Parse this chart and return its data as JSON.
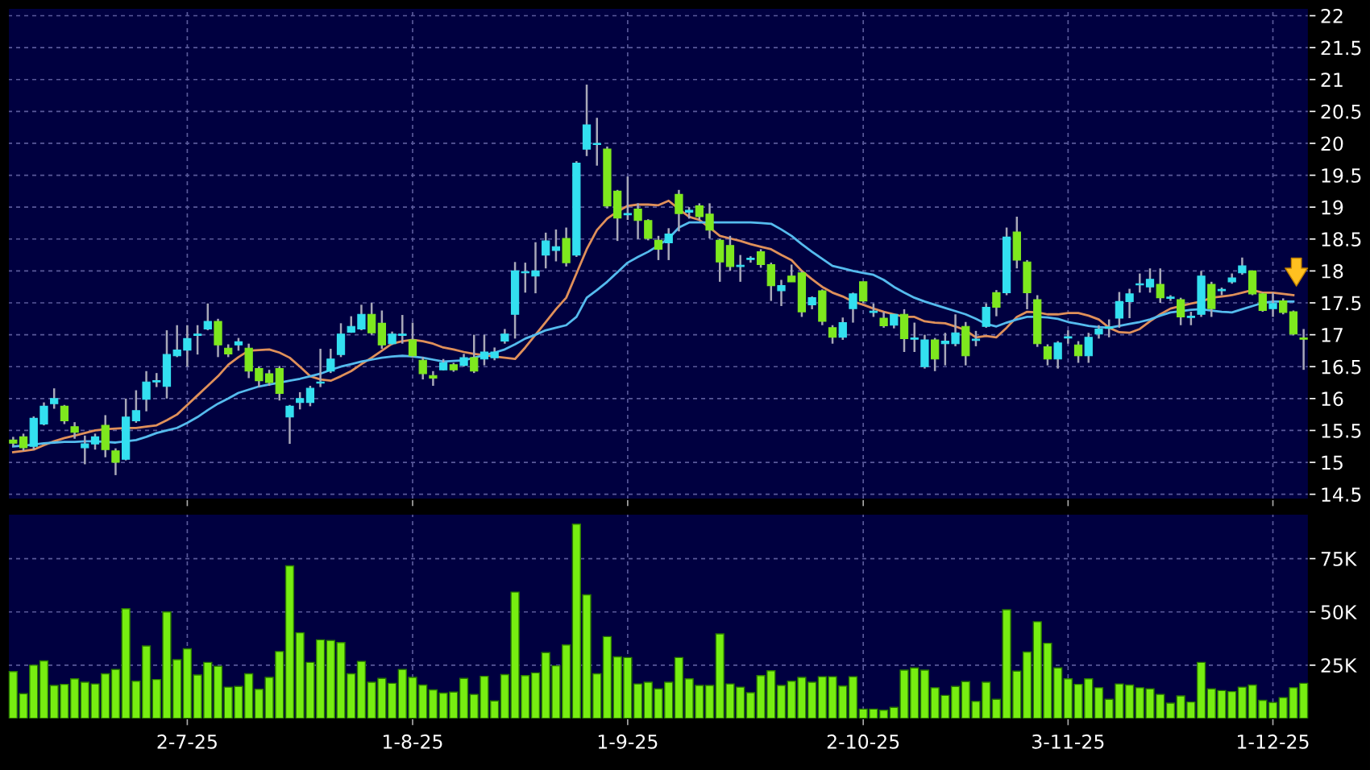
{
  "chart_data": [
    {
      "type": "candlestick",
      "tick_labels": "y",
      "grid": true,
      "legend": false,
      "categories": [
        null,
        null,
        null,
        null,
        null,
        null,
        null,
        null,
        null,
        null,
        null,
        null,
        null,
        null,
        null,
        null,
        null,
        null,
        null,
        null,
        null,
        null,
        null,
        null,
        null,
        null,
        null,
        null,
        null,
        null,
        null,
        null,
        null,
        null,
        null,
        null,
        null,
        null,
        null,
        null,
        null,
        null,
        null,
        null,
        null,
        null,
        null,
        null,
        null,
        null,
        null,
        null,
        null,
        null,
        null,
        null,
        null,
        null,
        null,
        null,
        null,
        null,
        null,
        null,
        null,
        null,
        null,
        null,
        null,
        null,
        null,
        null,
        null,
        null,
        null,
        null,
        null,
        null,
        null,
        null,
        null,
        null,
        null,
        null,
        null,
        null,
        null,
        null,
        null,
        null,
        null,
        null,
        null,
        null,
        null,
        null,
        null,
        null,
        null,
        null,
        null,
        null,
        null,
        null,
        null,
        null,
        null,
        null,
        null,
        null,
        null,
        null,
        null,
        null,
        null,
        null,
        null,
        null,
        null,
        null,
        null,
        null,
        null,
        null,
        null,
        null,
        null
      ],
      "ylim": [
        14.42,
        22.12
      ],
      "yticks": [
        14.5,
        15,
        15.5,
        16,
        16.5,
        17,
        17.5,
        18,
        18.5,
        19,
        19.5,
        20,
        20.5,
        21,
        21.5,
        22
      ],
      "ohlc": [
        [
          15.35,
          15.4,
          15.25,
          15.3
        ],
        [
          15.4,
          15.45,
          15.18,
          15.23
        ],
        [
          15.25,
          15.72,
          15.2,
          15.69
        ],
        [
          15.6,
          15.94,
          15.58,
          15.88
        ],
        [
          15.92,
          16.16,
          15.84,
          16.0
        ],
        [
          15.88,
          15.9,
          15.6,
          15.65
        ],
        [
          15.56,
          15.63,
          15.37,
          15.47
        ],
        [
          15.23,
          15.42,
          14.97,
          15.29
        ],
        [
          15.29,
          15.45,
          15.2,
          15.4
        ],
        [
          15.58,
          15.74,
          15.08,
          15.2
        ],
        [
          15.18,
          15.22,
          14.8,
          15.0
        ],
        [
          15.05,
          16.0,
          15.03,
          15.71
        ],
        [
          15.65,
          16.13,
          15.62,
          15.81
        ],
        [
          15.99,
          16.43,
          15.8,
          16.26
        ],
        [
          16.26,
          16.4,
          16.18,
          16.28
        ],
        [
          16.19,
          17.07,
          16.0,
          16.69
        ],
        [
          16.67,
          17.15,
          16.65,
          16.76
        ],
        [
          16.76,
          17.15,
          16.5,
          16.94
        ],
        [
          16.99,
          17.15,
          16.69,
          17.01
        ],
        [
          17.09,
          17.49,
          17.07,
          17.21
        ],
        [
          17.21,
          17.25,
          16.65,
          16.84
        ],
        [
          16.79,
          16.85,
          16.65,
          16.7
        ],
        [
          16.84,
          16.95,
          16.75,
          16.89
        ],
        [
          16.79,
          16.86,
          16.32,
          16.43
        ],
        [
          16.47,
          16.5,
          16.18,
          16.28
        ],
        [
          16.39,
          16.45,
          16.2,
          16.25
        ],
        [
          16.47,
          16.51,
          15.97,
          16.08
        ],
        [
          15.71,
          15.9,
          15.29,
          15.88
        ],
        [
          15.94,
          16.1,
          15.83,
          16.0
        ],
        [
          15.94,
          16.2,
          15.88,
          16.16
        ],
        [
          16.24,
          16.78,
          16.18,
          16.26
        ],
        [
          16.43,
          16.78,
          16.4,
          16.62
        ],
        [
          16.69,
          17.18,
          16.65,
          17.01
        ],
        [
          17.04,
          17.29,
          17.03,
          17.13
        ],
        [
          17.09,
          17.47,
          17.07,
          17.32
        ],
        [
          17.32,
          17.5,
          17.0,
          17.03
        ],
        [
          17.18,
          17.38,
          16.78,
          16.84
        ],
        [
          16.86,
          17.05,
          16.84,
          17.01
        ],
        [
          16.99,
          17.31,
          16.86,
          17.01
        ],
        [
          16.92,
          17.19,
          16.64,
          16.67
        ],
        [
          16.6,
          16.65,
          16.3,
          16.39
        ],
        [
          16.36,
          16.43,
          16.2,
          16.32
        ],
        [
          16.45,
          16.62,
          16.44,
          16.56
        ],
        [
          16.53,
          16.56,
          16.42,
          16.45
        ],
        [
          16.52,
          16.7,
          16.5,
          16.64
        ],
        [
          16.64,
          17.0,
          16.4,
          16.43
        ],
        [
          16.62,
          17.0,
          16.52,
          16.73
        ],
        [
          16.64,
          16.8,
          16.6,
          16.73
        ],
        [
          16.9,
          17.09,
          16.86,
          17.01
        ],
        [
          17.32,
          18.14,
          16.94,
          18.0
        ],
        [
          17.97,
          18.13,
          17.66,
          17.99
        ],
        [
          17.92,
          18.45,
          17.65,
          18.0
        ],
        [
          18.25,
          18.6,
          18.04,
          18.47
        ],
        [
          18.32,
          18.65,
          18.15,
          18.38
        ],
        [
          18.51,
          18.68,
          18.07,
          18.13
        ],
        [
          18.25,
          19.72,
          18.22,
          19.69
        ],
        [
          19.91,
          20.92,
          19.8,
          20.29
        ],
        [
          19.98,
          20.4,
          19.65,
          20.0
        ],
        [
          19.91,
          19.95,
          18.98,
          19.02
        ],
        [
          19.25,
          19.27,
          18.47,
          18.83
        ],
        [
          18.88,
          19.48,
          18.8,
          18.9
        ],
        [
          18.97,
          19.06,
          18.5,
          18.79
        ],
        [
          18.79,
          18.81,
          18.48,
          18.51
        ],
        [
          18.48,
          18.55,
          18.17,
          18.34
        ],
        [
          18.44,
          18.67,
          18.17,
          18.58
        ],
        [
          19.2,
          19.27,
          18.62,
          18.9
        ],
        [
          18.92,
          19.0,
          18.82,
          18.95
        ],
        [
          19.02,
          19.06,
          18.8,
          18.85
        ],
        [
          18.89,
          19.06,
          18.51,
          18.64
        ],
        [
          18.48,
          18.5,
          17.83,
          18.14
        ],
        [
          18.4,
          18.55,
          18.0,
          18.07
        ],
        [
          18.07,
          18.25,
          17.83,
          18.09
        ],
        [
          18.18,
          18.23,
          18.13,
          18.2
        ],
        [
          18.3,
          18.34,
          18.05,
          18.1
        ],
        [
          18.1,
          18.13,
          17.53,
          17.77
        ],
        [
          17.69,
          17.86,
          17.45,
          17.77
        ],
        [
          17.92,
          18.1,
          17.83,
          17.83
        ],
        [
          17.97,
          18.0,
          17.28,
          17.36
        ],
        [
          17.47,
          17.6,
          17.4,
          17.58
        ],
        [
          17.69,
          17.71,
          17.15,
          17.21
        ],
        [
          17.11,
          17.15,
          16.86,
          16.96
        ],
        [
          16.96,
          17.27,
          16.92,
          17.19
        ],
        [
          17.41,
          17.66,
          17.19,
          17.64
        ],
        [
          17.83,
          17.83,
          17.5,
          17.53
        ],
        [
          17.35,
          17.49,
          17.28,
          17.37
        ],
        [
          17.26,
          17.36,
          17.11,
          17.14
        ],
        [
          17.15,
          17.32,
          17.1,
          17.32
        ],
        [
          17.32,
          17.4,
          16.73,
          16.94
        ],
        [
          16.93,
          17.19,
          16.73,
          16.95
        ],
        [
          16.5,
          17.0,
          16.47,
          16.92
        ],
        [
          16.92,
          16.95,
          16.43,
          16.62
        ],
        [
          16.86,
          17.03,
          16.52,
          16.9
        ],
        [
          16.86,
          17.32,
          16.82,
          17.03
        ],
        [
          17.13,
          17.2,
          16.52,
          16.67
        ],
        [
          16.91,
          17.06,
          16.82,
          16.93
        ],
        [
          17.13,
          17.49,
          17.11,
          17.43
        ],
        [
          17.66,
          17.7,
          17.29,
          17.43
        ],
        [
          17.66,
          18.68,
          17.62,
          18.53
        ],
        [
          18.61,
          18.85,
          18.04,
          18.17
        ],
        [
          18.14,
          18.17,
          17.4,
          17.66
        ],
        [
          17.55,
          17.62,
          16.81,
          16.86
        ],
        [
          16.81,
          16.85,
          16.52,
          16.62
        ],
        [
          16.62,
          16.9,
          16.47,
          16.87
        ],
        [
          16.95,
          17.07,
          16.86,
          16.97
        ],
        [
          16.84,
          16.9,
          16.56,
          16.67
        ],
        [
          16.67,
          17.03,
          16.56,
          16.96
        ],
        [
          17.01,
          17.15,
          16.94,
          17.09
        ],
        [
          17.1,
          17.24,
          16.96,
          17.12
        ],
        [
          17.26,
          17.67,
          17.11,
          17.52
        ],
        [
          17.52,
          17.72,
          17.26,
          17.64
        ],
        [
          17.78,
          17.96,
          17.66,
          17.8
        ],
        [
          17.75,
          18.04,
          17.66,
          17.87
        ],
        [
          17.79,
          18.04,
          17.5,
          17.58
        ],
        [
          17.57,
          17.62,
          17.53,
          17.59
        ],
        [
          17.55,
          17.58,
          17.15,
          17.28
        ],
        [
          17.27,
          17.36,
          17.15,
          17.29
        ],
        [
          17.32,
          18.0,
          17.28,
          17.92
        ],
        [
          17.79,
          17.83,
          17.28,
          17.41
        ],
        [
          17.69,
          17.74,
          17.62,
          17.71
        ],
        [
          17.83,
          17.96,
          17.8,
          17.89
        ],
        [
          17.97,
          18.21,
          17.94,
          18.08
        ],
        [
          18.0,
          18.0,
          17.62,
          17.64
        ],
        [
          17.64,
          17.66,
          17.36,
          17.38
        ],
        [
          17.41,
          17.66,
          17.28,
          17.49
        ],
        [
          17.53,
          17.57,
          17.32,
          17.35
        ],
        [
          17.36,
          17.38,
          16.99,
          17.01
        ],
        [
          16.95,
          17.09,
          16.45,
          16.93
        ]
      ],
      "colors": [
        "#7ee81e",
        "#7ee81e",
        "#33e0f0",
        "#33e0f0",
        "#33e0f0",
        "#7ee81e",
        "#7ee81e",
        "#33e0f0",
        "#33e0f0",
        "#7ee81e",
        "#7ee81e",
        "#33e0f0",
        "#33e0f0",
        "#33e0f0",
        "#33e0f0",
        "#33e0f0",
        "#33e0f0",
        "#33e0f0",
        "#33e0f0",
        "#33e0f0",
        "#7ee81e",
        "#7ee81e",
        "#33e0f0",
        "#7ee81e",
        "#7ee81e",
        "#7ee81e",
        "#7ee81e",
        "#33e0f0",
        "#33e0f0",
        "#33e0f0",
        "#33e0f0",
        "#33e0f0",
        "#33e0f0",
        "#33e0f0",
        "#33e0f0",
        "#7ee81e",
        "#7ee81e",
        "#33e0f0",
        "#33e0f0",
        "#7ee81e",
        "#7ee81e",
        "#7ee81e",
        "#33e0f0",
        "#7ee81e",
        "#33e0f0",
        "#7ee81e",
        "#33e0f0",
        "#33e0f0",
        "#33e0f0",
        "#33e0f0",
        "#33e0f0",
        "#33e0f0",
        "#33e0f0",
        "#33e0f0",
        "#7ee81e",
        "#33e0f0",
        "#33e0f0",
        "#33e0f0",
        "#7ee81e",
        "#7ee81e",
        "#33e0f0",
        "#7ee81e",
        "#7ee81e",
        "#7ee81e",
        "#33e0f0",
        "#7ee81e",
        "#33e0f0",
        "#7ee81e",
        "#7ee81e",
        "#7ee81e",
        "#7ee81e",
        "#33e0f0",
        "#33e0f0",
        "#7ee81e",
        "#7ee81e",
        "#33e0f0",
        "#7ee81e",
        "#7ee81e",
        "#33e0f0",
        "#7ee81e",
        "#7ee81e",
        "#33e0f0",
        "#33e0f0",
        "#7ee81e",
        "#33e0f0",
        "#7ee81e",
        "#33e0f0",
        "#7ee81e",
        "#33e0f0",
        "#33e0f0",
        "#7ee81e",
        "#33e0f0",
        "#33e0f0",
        "#7ee81e",
        "#33e0f0",
        "#33e0f0",
        "#7ee81e",
        "#33e0f0",
        "#7ee81e",
        "#7ee81e",
        "#7ee81e",
        "#7ee81e",
        "#33e0f0",
        "#33e0f0",
        "#7ee81e",
        "#33e0f0",
        "#33e0f0",
        "#33e0f0",
        "#33e0f0",
        "#33e0f0",
        "#33e0f0",
        "#33e0f0",
        "#7ee81e",
        "#33e0f0",
        "#7ee81e",
        "#33e0f0",
        "#33e0f0",
        "#7ee81e",
        "#33e0f0",
        "#33e0f0",
        "#33e0f0",
        "#7ee81e",
        "#7ee81e",
        "#33e0f0",
        "#7ee81e",
        "#7ee81e",
        "#7ee81e"
      ],
      "series": [
        {
          "type": "line",
          "color": "#e0905a",
          "values": [
            15.16,
            15.18,
            15.2,
            15.27,
            15.33,
            15.38,
            15.42,
            15.46,
            15.5,
            15.52,
            15.53,
            15.54,
            15.54,
            15.56,
            15.58,
            15.66,
            15.75,
            15.9,
            16.05,
            16.2,
            16.35,
            16.53,
            16.65,
            16.75,
            16.76,
            16.77,
            16.72,
            16.64,
            16.5,
            16.35,
            16.3,
            16.28,
            16.35,
            16.43,
            16.54,
            16.64,
            16.75,
            16.86,
            16.9,
            16.92,
            16.9,
            16.86,
            16.8,
            16.77,
            16.73,
            16.7,
            16.68,
            16.66,
            16.64,
            16.62,
            16.8,
            17.0,
            17.2,
            17.4,
            17.58,
            17.96,
            18.34,
            18.64,
            18.82,
            18.93,
            19.02,
            19.04,
            19.04,
            19.03,
            19.1,
            18.97,
            18.85,
            18.8,
            18.68,
            18.55,
            18.51,
            18.47,
            18.42,
            18.38,
            18.34,
            18.25,
            18.17,
            18.0,
            17.87,
            17.75,
            17.66,
            17.6,
            17.52,
            17.47,
            17.41,
            17.36,
            17.32,
            17.28,
            17.28,
            17.21,
            17.19,
            17.18,
            17.13,
            17.07,
            16.96,
            16.98,
            16.96,
            17.11,
            17.28,
            17.36,
            17.35,
            17.32,
            17.32,
            17.34,
            17.34,
            17.3,
            17.24,
            17.11,
            17.04,
            17.03,
            17.09,
            17.21,
            17.32,
            17.41,
            17.45,
            17.49,
            17.52,
            17.58,
            17.6,
            17.62,
            17.66,
            17.7,
            17.66,
            17.66,
            17.64,
            17.62,
            null
          ]
        },
        {
          "type": "line",
          "color": "#55bbee",
          "values": [
            15.25,
            15.26,
            15.28,
            15.3,
            15.31,
            15.32,
            15.32,
            15.33,
            15.33,
            15.32,
            15.31,
            15.33,
            15.35,
            15.4,
            15.46,
            15.5,
            15.54,
            15.62,
            15.71,
            15.82,
            15.92,
            16.0,
            16.09,
            16.14,
            16.19,
            16.22,
            16.25,
            16.28,
            16.31,
            16.35,
            16.39,
            16.45,
            16.5,
            16.54,
            16.58,
            16.61,
            16.64,
            16.66,
            16.67,
            16.66,
            16.64,
            16.61,
            16.58,
            16.59,
            16.6,
            16.64,
            16.68,
            16.72,
            16.77,
            16.85,
            16.94,
            17.0,
            17.07,
            17.11,
            17.15,
            17.28,
            17.58,
            17.7,
            17.83,
            17.98,
            18.13,
            18.22,
            18.3,
            18.4,
            18.51,
            18.68,
            18.76,
            18.76,
            18.76,
            18.76,
            18.76,
            18.76,
            18.76,
            18.75,
            18.74,
            18.65,
            18.55,
            18.42,
            18.3,
            18.19,
            18.08,
            18.04,
            18.0,
            17.97,
            17.94,
            17.86,
            17.75,
            17.66,
            17.58,
            17.52,
            17.47,
            17.42,
            17.37,
            17.32,
            17.25,
            17.17,
            17.13,
            17.19,
            17.24,
            17.28,
            17.28,
            17.27,
            17.25,
            17.2,
            17.17,
            17.14,
            17.12,
            17.11,
            17.14,
            17.17,
            17.2,
            17.24,
            17.3,
            17.35,
            17.37,
            17.39,
            17.4,
            17.38,
            17.36,
            17.35,
            17.4,
            17.45,
            17.5,
            17.52,
            17.52,
            17.52,
            null
          ]
        }
      ]
    },
    {
      "type": "bar",
      "grid": true,
      "legend": false,
      "color": "#77ee11",
      "categories": [
        null,
        null,
        null,
        null,
        null,
        null,
        null,
        null,
        null,
        null,
        null,
        null,
        null,
        null,
        null,
        null,
        null,
        "2-7-25",
        null,
        null,
        null,
        null,
        null,
        null,
        null,
        null,
        null,
        null,
        null,
        null,
        null,
        null,
        null,
        null,
        null,
        null,
        null,
        null,
        null,
        "1-8-25",
        null,
        null,
        null,
        null,
        null,
        null,
        null,
        null,
        null,
        null,
        null,
        null,
        null,
        null,
        null,
        null,
        null,
        null,
        null,
        null,
        "1-9-25",
        null,
        null,
        null,
        null,
        null,
        null,
        null,
        null,
        null,
        null,
        null,
        null,
        null,
        null,
        null,
        null,
        null,
        null,
        null,
        null,
        null,
        null,
        "2-10-25",
        null,
        null,
        null,
        null,
        null,
        null,
        null,
        null,
        null,
        null,
        null,
        null,
        null,
        null,
        null,
        null,
        null,
        null,
        null,
        "3-11-25",
        null,
        null,
        null,
        null,
        null,
        null,
        null,
        null,
        null,
        null,
        null,
        null,
        null,
        null,
        null,
        null,
        null,
        null,
        null,
        "1-12-25",
        null,
        null,
        null
      ],
      "ylim": [
        0,
        96
      ],
      "yticks": [
        {
          "value": 25,
          "label": "25K"
        },
        {
          "value": 50,
          "label": "50K"
        },
        {
          "value": 75,
          "label": "75K"
        }
      ],
      "values": [
        22,
        11.6,
        25,
        27,
        15.5,
        16,
        18.6,
        17,
        16.2,
        21,
        23,
        51.5,
        17.5,
        34,
        18.3,
        50,
        27.6,
        32.7,
        20.4,
        26.3,
        24.5,
        14.7,
        15,
        21,
        13.7,
        19.3,
        31.4,
        71.6,
        40.2,
        26.3,
        36.9,
        36.6,
        35.6,
        21,
        26.8,
        17,
        18.8,
        16.5,
        23,
        19.3,
        15.7,
        13.4,
        11.9,
        12.4,
        18.8,
        11.3,
        19.8,
        8.2,
        20.6,
        59.3,
        20.1,
        21.4,
        30.9,
        24.7,
        34.5,
        91.2,
        58,
        21,
        38.4,
        28.9,
        28.6,
        16.2,
        17,
        13.9,
        17,
        28.6,
        18.6,
        15.5,
        15.5,
        39.7,
        16.2,
        14.7,
        12.1,
        20.1,
        22.4,
        15.5,
        17.5,
        19.3,
        17,
        19.6,
        19.6,
        15.2,
        19.6,
        4.4,
        4.4,
        3.9,
        5.2,
        22.7,
        23.7,
        22.7,
        14.4,
        10.8,
        15,
        17.3,
        8,
        17,
        9,
        51,
        22.2,
        31.2,
        45.4,
        35.3,
        23.7,
        18.6,
        16,
        18.6,
        14.4,
        9,
        16.2,
        15.7,
        14.4,
        13.9,
        11.3,
        7.2,
        10.6,
        7.7,
        26.3,
        13.9,
        13.1,
        12.6,
        14.7,
        15.7,
        8.5,
        7.5,
        9.8,
        14.4,
        16.5
      ]
    }
  ]
}
